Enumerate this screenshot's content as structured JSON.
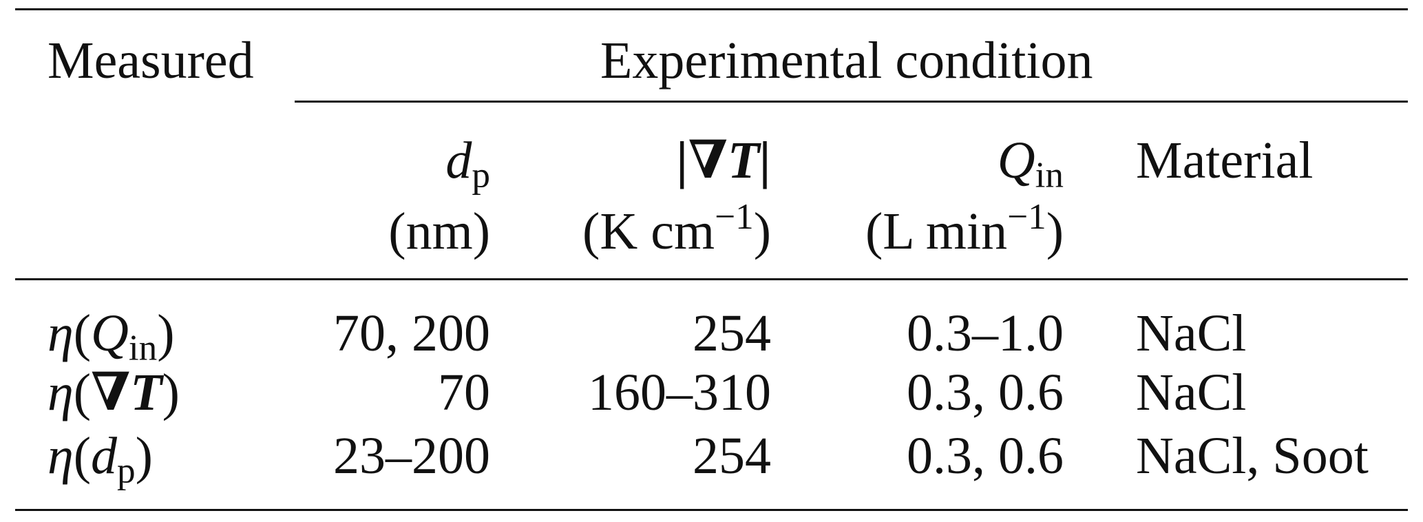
{
  "table": {
    "header": {
      "measured": "Measured",
      "group": "Experimental condition",
      "columns": [
        {
          "symbol": "d",
          "subscript": "p",
          "unit": "(nm)"
        },
        {
          "symbol": "|∇T|",
          "unit_main": "(K cm",
          "unit_sup": "−1",
          "unit_close": ")"
        },
        {
          "symbol": "Q",
          "subscript": "in",
          "unit_main": "(L min",
          "unit_sup": "−1",
          "unit_close": ")"
        },
        {
          "symbol": "Material"
        }
      ]
    },
    "rows": [
      {
        "measured": {
          "eta": "η",
          "open": "(",
          "var": "Q",
          "sub": "in",
          "close": ")"
        },
        "dp": "70, 200",
        "gradT": "254",
        "Qin": "0.3–1.0",
        "material": "NaCl"
      },
      {
        "measured": {
          "eta": "η",
          "open": "(",
          "var": "∇T",
          "sub": "",
          "close": ")"
        },
        "dp": "70",
        "gradT": "160–310",
        "Qin": "0.3, 0.6",
        "material": "NaCl"
      },
      {
        "measured": {
          "eta": "η",
          "open": "(",
          "var": "d",
          "sub": "p",
          "close": ")"
        },
        "dp": "23–200",
        "gradT": "254",
        "Qin": "0.3, 0.6",
        "material": "NaCl, Soot"
      }
    ]
  }
}
